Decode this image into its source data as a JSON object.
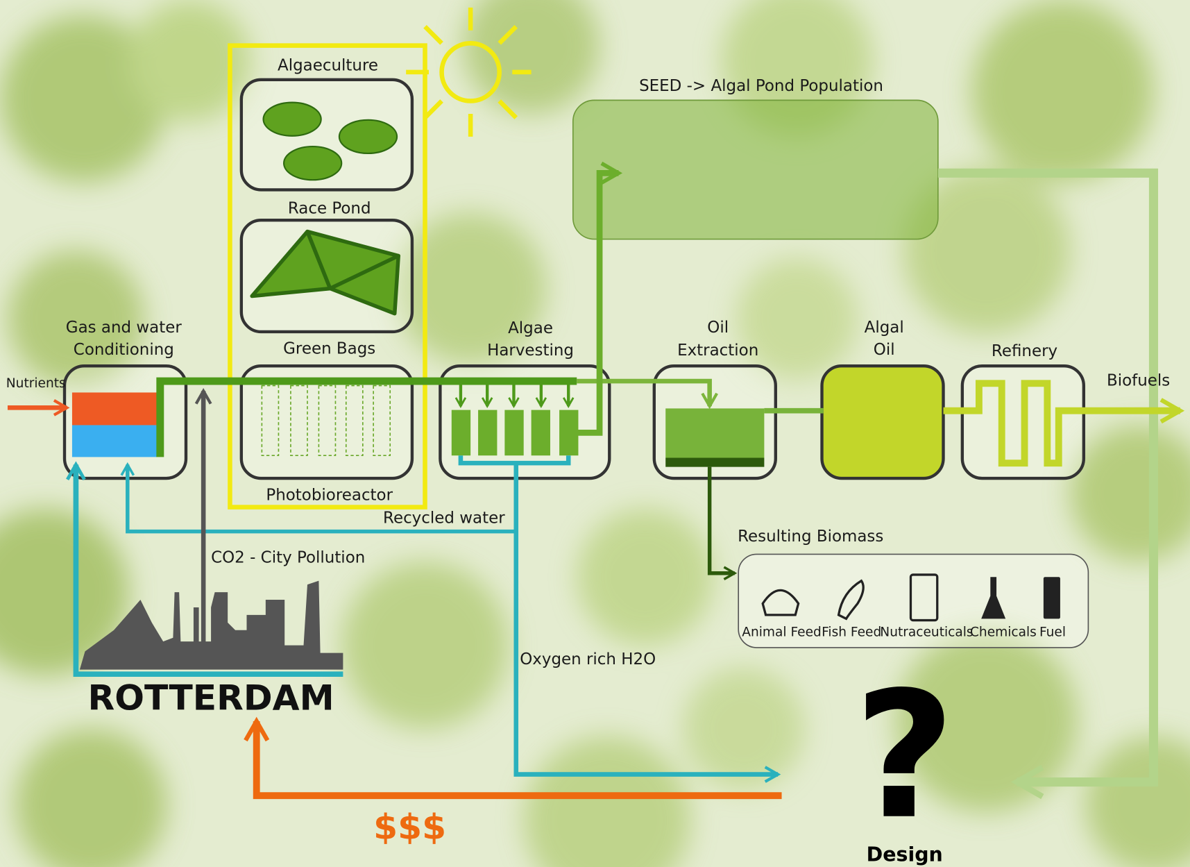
{
  "labels": {
    "algaeculture": "Algaeculture",
    "race_pond": "Race Pond",
    "green_bags": "Green Bags",
    "photobioreactor": "Photobioreactor",
    "seed": "SEED -> Algal Pond Population",
    "conditioning": [
      "Gas and water",
      "Conditioning"
    ],
    "nutrients": "Nutrients",
    "harvesting": [
      "Algae",
      "Harvesting"
    ],
    "extraction": [
      "Oil",
      "Extraction"
    ],
    "algal_oil": [
      "Algal",
      "Oil"
    ],
    "refinery": "Refinery",
    "biofuels": "Biofuels",
    "recycled_water": "Recycled water",
    "co2": "CO2 - City Pollution",
    "oxygen": "Oxygen rich H2O",
    "biomass": "Resulting Biomass",
    "city": "ROTTERDAM",
    "money": "$$$",
    "question": "?",
    "design": "Design"
  },
  "products": [
    "Animal Feed",
    "Fish Feed",
    "Nutraceuticals",
    "Chemicals",
    "Fuel"
  ]
}
